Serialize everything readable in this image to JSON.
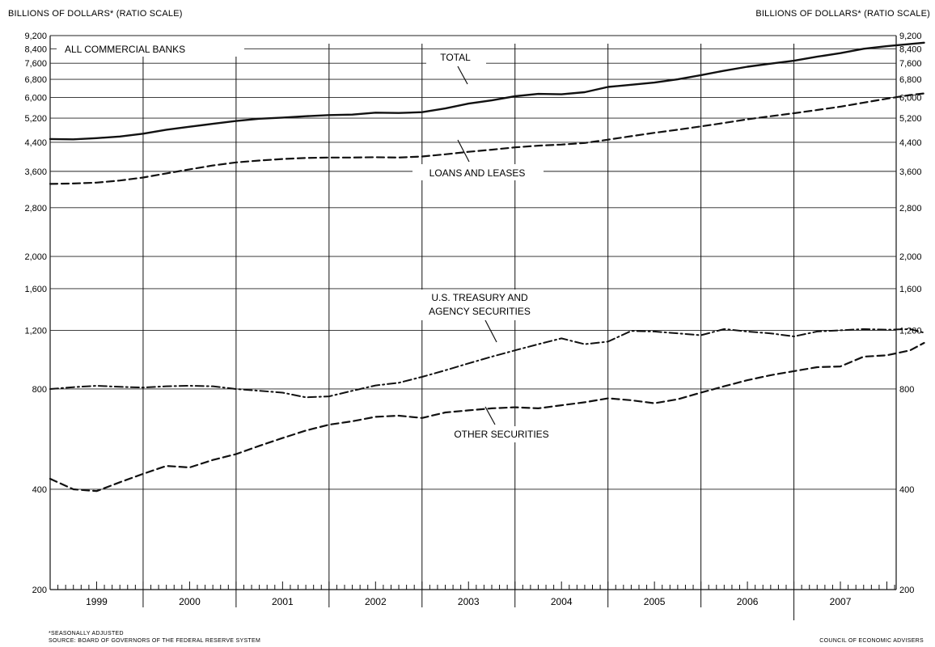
{
  "chart_data": {
    "type": "line",
    "y_scale": "log",
    "ylim": [
      200,
      9200
    ],
    "xlim": [
      1998.5,
      2007.6
    ],
    "y_axis_title_left": "BILLIONS OF DOLLARS* (RATIO SCALE)",
    "y_axis_title_right": "BILLIONS OF DOLLARS* (RATIO SCALE)",
    "y_ticks": [
      200,
      400,
      800,
      1200,
      1600,
      2000,
      2800,
      3600,
      4400,
      5200,
      6000,
      6800,
      7600,
      8400,
      9200
    ],
    "y_tick_labels": [
      "200",
      "400",
      "800",
      "1,200",
      "1,600",
      "2,000",
      "2,800",
      "3,600",
      "4,400",
      "5,200",
      "6,000",
      "6,800",
      "7,600",
      "8,400",
      "9,200"
    ],
    "x_tick_labels": [
      "1999",
      "2000",
      "2001",
      "2002",
      "2003",
      "2004",
      "2005",
      "2006",
      "2007"
    ],
    "grid": true,
    "panel_label": "ALL COMMERCIAL BANKS",
    "series": [
      {
        "name": "TOTAL",
        "style": "solid",
        "points": [
          [
            1998.5,
            4500
          ],
          [
            1998.75,
            4490
          ],
          [
            1999.0,
            4530
          ],
          [
            1999.25,
            4580
          ],
          [
            1999.5,
            4670
          ],
          [
            1999.75,
            4800
          ],
          [
            2000.0,
            4900
          ],
          [
            2000.25,
            5000
          ],
          [
            2000.5,
            5100
          ],
          [
            2000.75,
            5180
          ],
          [
            2001.0,
            5220
          ],
          [
            2001.25,
            5270
          ],
          [
            2001.5,
            5310
          ],
          [
            2001.75,
            5330
          ],
          [
            2002.0,
            5400
          ],
          [
            2002.25,
            5390
          ],
          [
            2002.5,
            5420
          ],
          [
            2002.75,
            5560
          ],
          [
            2003.0,
            5750
          ],
          [
            2003.25,
            5880
          ],
          [
            2003.5,
            6050
          ],
          [
            2003.75,
            6150
          ],
          [
            2004.0,
            6130
          ],
          [
            2004.25,
            6220
          ],
          [
            2004.5,
            6450
          ],
          [
            2004.75,
            6550
          ],
          [
            2005.0,
            6650
          ],
          [
            2005.25,
            6800
          ],
          [
            2005.5,
            7000
          ],
          [
            2005.75,
            7220
          ],
          [
            2006.0,
            7420
          ],
          [
            2006.25,
            7580
          ],
          [
            2006.5,
            7730
          ],
          [
            2006.75,
            7950
          ],
          [
            2007.0,
            8150
          ],
          [
            2007.25,
            8400
          ],
          [
            2007.5,
            8550
          ],
          [
            2007.75,
            8680
          ],
          [
            2007.9,
            8760
          ]
        ]
      },
      {
        "name": "LOANS AND LEASES",
        "style": "dashed",
        "points": [
          [
            1998.5,
            3300
          ],
          [
            1998.75,
            3310
          ],
          [
            1999.0,
            3330
          ],
          [
            1999.25,
            3380
          ],
          [
            1999.5,
            3450
          ],
          [
            1999.75,
            3550
          ],
          [
            2000.0,
            3650
          ],
          [
            2000.25,
            3750
          ],
          [
            2000.5,
            3830
          ],
          [
            2000.75,
            3880
          ],
          [
            2001.0,
            3920
          ],
          [
            2001.25,
            3950
          ],
          [
            2001.5,
            3960
          ],
          [
            2001.75,
            3960
          ],
          [
            2002.0,
            3970
          ],
          [
            2002.25,
            3960
          ],
          [
            2002.5,
            3990
          ],
          [
            2002.75,
            4050
          ],
          [
            2003.0,
            4120
          ],
          [
            2003.25,
            4180
          ],
          [
            2003.5,
            4250
          ],
          [
            2003.75,
            4300
          ],
          [
            2004.0,
            4330
          ],
          [
            2004.25,
            4380
          ],
          [
            2004.5,
            4480
          ],
          [
            2004.75,
            4590
          ],
          [
            2005.0,
            4700
          ],
          [
            2005.25,
            4800
          ],
          [
            2005.5,
            4910
          ],
          [
            2005.75,
            5030
          ],
          [
            2006.0,
            5160
          ],
          [
            2006.25,
            5270
          ],
          [
            2006.5,
            5380
          ],
          [
            2006.75,
            5500
          ],
          [
            2007.0,
            5630
          ],
          [
            2007.25,
            5790
          ],
          [
            2007.5,
            5950
          ],
          [
            2007.75,
            6100
          ],
          [
            2007.9,
            6170
          ]
        ]
      },
      {
        "name": "U.S. TREASURY AND AGENCY SECURITIES",
        "style": "dash-dot",
        "points": [
          [
            1998.5,
            800
          ],
          [
            1998.75,
            810
          ],
          [
            1999.0,
            818
          ],
          [
            1999.25,
            812
          ],
          [
            1999.5,
            808
          ],
          [
            1999.75,
            815
          ],
          [
            2000.0,
            818
          ],
          [
            2000.25,
            815
          ],
          [
            2000.5,
            800
          ],
          [
            2000.75,
            790
          ],
          [
            2001.0,
            780
          ],
          [
            2001.25,
            755
          ],
          [
            2001.5,
            760
          ],
          [
            2001.75,
            790
          ],
          [
            2002.0,
            820
          ],
          [
            2002.25,
            835
          ],
          [
            2002.5,
            870
          ],
          [
            2002.75,
            910
          ],
          [
            2003.0,
            955
          ],
          [
            2003.25,
            1000
          ],
          [
            2003.5,
            1045
          ],
          [
            2003.75,
            1090
          ],
          [
            2004.0,
            1135
          ],
          [
            2004.25,
            1090
          ],
          [
            2004.5,
            1110
          ],
          [
            2004.75,
            1195
          ],
          [
            2005.0,
            1190
          ],
          [
            2005.25,
            1175
          ],
          [
            2005.5,
            1160
          ],
          [
            2005.75,
            1210
          ],
          [
            2006.0,
            1190
          ],
          [
            2006.25,
            1175
          ],
          [
            2006.5,
            1150
          ],
          [
            2006.75,
            1190
          ],
          [
            2007.0,
            1200
          ],
          [
            2007.25,
            1210
          ],
          [
            2007.5,
            1205
          ],
          [
            2007.75,
            1210
          ],
          [
            2007.9,
            1180
          ]
        ]
      },
      {
        "name": "OTHER SECURITIES",
        "style": "dashed",
        "points": [
          [
            1998.5,
            430
          ],
          [
            1998.75,
            400
          ],
          [
            1999.0,
            395
          ],
          [
            1999.25,
            420
          ],
          [
            1999.5,
            445
          ],
          [
            1999.75,
            470
          ],
          [
            2000.0,
            465
          ],
          [
            2000.25,
            490
          ],
          [
            2000.5,
            510
          ],
          [
            2000.75,
            540
          ],
          [
            2001.0,
            570
          ],
          [
            2001.25,
            600
          ],
          [
            2001.5,
            625
          ],
          [
            2001.75,
            640
          ],
          [
            2002.0,
            660
          ],
          [
            2002.25,
            665
          ],
          [
            2002.5,
            655
          ],
          [
            2002.75,
            680
          ],
          [
            2003.0,
            690
          ],
          [
            2003.25,
            700
          ],
          [
            2003.5,
            705
          ],
          [
            2003.75,
            700
          ],
          [
            2004.0,
            715
          ],
          [
            2004.25,
            730
          ],
          [
            2004.5,
            750
          ],
          [
            2004.75,
            740
          ],
          [
            2005.0,
            725
          ],
          [
            2005.25,
            745
          ],
          [
            2005.5,
            780
          ],
          [
            2005.75,
            815
          ],
          [
            2006.0,
            850
          ],
          [
            2006.25,
            880
          ],
          [
            2006.5,
            905
          ],
          [
            2006.75,
            930
          ],
          [
            2007.0,
            935
          ],
          [
            2007.25,
            1000
          ],
          [
            2007.5,
            1010
          ],
          [
            2007.75,
            1045
          ],
          [
            2007.9,
            1100
          ]
        ]
      }
    ],
    "annotations": [
      {
        "text": "TOTAL"
      },
      {
        "text": "LOANS AND LEASES"
      },
      {
        "text": "U.S. TREASURY AND"
      },
      {
        "text": "AGENCY SECURITIES"
      },
      {
        "text": "OTHER SECURITIES"
      }
    ],
    "footnotes": {
      "line1": "*SEASONALLY ADJUSTED",
      "line2": "SOURCE: BOARD OF GOVERNORS OF THE FEDERAL RESERVE SYSTEM",
      "credit": "COUNCIL OF ECONOMIC ADVISERS"
    }
  }
}
